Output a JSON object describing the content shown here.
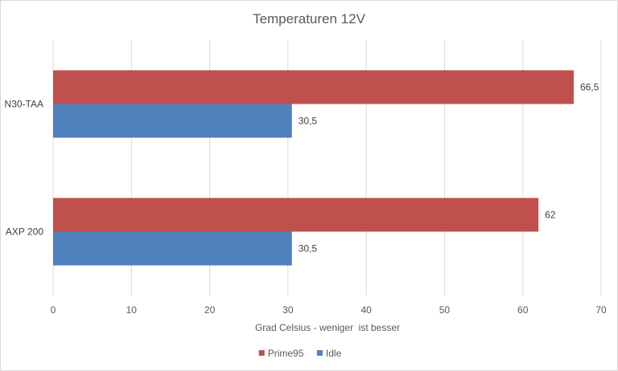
{
  "chart_data": {
    "type": "bar",
    "orientation": "horizontal",
    "title": "Temperaturen 12V",
    "xlabel": "Grad Celsius - weniger  ist besser",
    "ylabel": "",
    "categories": [
      "N30-TAA",
      "AXP 200"
    ],
    "series": [
      {
        "name": "Prime95",
        "values": [
          66.5,
          62
        ],
        "labels": [
          "66,5",
          "62"
        ],
        "color": "#c0504d"
      },
      {
        "name": "Idle",
        "values": [
          30.5,
          30.5
        ],
        "labels": [
          "30,5",
          "30,5"
        ],
        "color": "#4f81bd"
      }
    ],
    "xlim": [
      0,
      70
    ],
    "xticks": [
      0,
      10,
      20,
      30,
      40,
      50,
      60,
      70
    ],
    "grid": true,
    "legend_position": "bottom"
  }
}
